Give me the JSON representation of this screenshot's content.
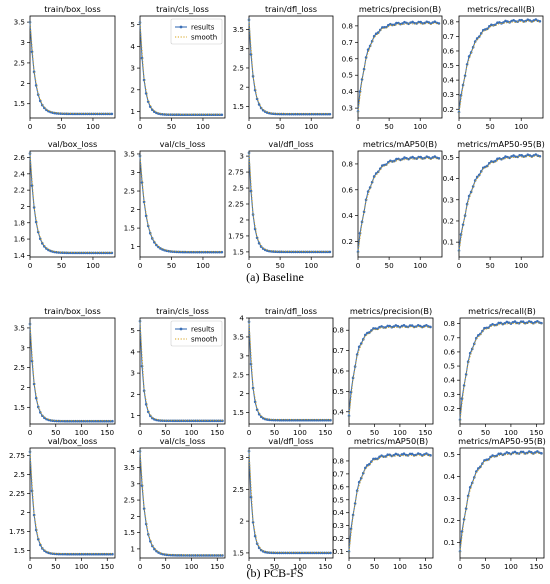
{
  "captions": [
    "(a) Baseline",
    "(b) PCB-FS"
  ],
  "style": {
    "line_color": "#3b6fb6",
    "smooth_color": "#d4a017",
    "axis_color": "#000000"
  },
  "legend": {
    "results": "results",
    "smooth": "smooth"
  },
  "chart_data": [
    {
      "type": "line",
      "group": 0,
      "title": "train/box_loss",
      "xlim": [
        0,
        135
      ],
      "ylim": [
        1.15,
        3.65
      ],
      "xticks": [
        0,
        50,
        100
      ],
      "yticks": [
        1.5,
        2.0,
        2.5,
        3.0,
        3.5
      ],
      "x_end": 130,
      "y_start": 3.5,
      "y_end": 1.25,
      "decay": 0.12,
      "mid": 1.55,
      "mid_x": 18,
      "legend": false
    },
    {
      "type": "line",
      "group": 0,
      "title": "train/cls_loss",
      "xlim": [
        0,
        135
      ],
      "ylim": [
        0.7,
        5.4
      ],
      "xticks": [
        0,
        50,
        100
      ],
      "yticks": [
        1,
        2,
        3,
        4,
        5
      ],
      "x_end": 130,
      "y_start": 5.1,
      "y_end": 0.85,
      "decay": 0.15,
      "mid": 1.5,
      "mid_x": 15,
      "legend": true
    },
    {
      "type": "line",
      "group": 0,
      "title": "train/dfl_loss",
      "xlim": [
        0,
        135
      ],
      "ylim": [
        1.2,
        3.85
      ],
      "xticks": [
        0,
        50,
        100
      ],
      "yticks": [
        1.5,
        2.0,
        2.5,
        3.0,
        3.5
      ],
      "x_end": 130,
      "y_start": 3.75,
      "y_end": 1.3,
      "decay": 0.14,
      "mid": 1.6,
      "mid_x": 18,
      "legend": false
    },
    {
      "type": "line",
      "group": 0,
      "title": "metrics/precision(B)",
      "xlim": [
        0,
        135
      ],
      "ylim": [
        0.24,
        0.86
      ],
      "xticks": [
        0,
        50,
        100
      ],
      "yticks": [
        0.3,
        0.4,
        0.5,
        0.6,
        0.7,
        0.8
      ],
      "x_end": 130,
      "y_start": 0.28,
      "y_end": 0.82,
      "decay": 0.07,
      "legend": false
    },
    {
      "type": "line",
      "group": 0,
      "title": "metrics/recall(B)",
      "xlim": [
        0,
        135
      ],
      "ylim": [
        0.14,
        0.84
      ],
      "xticks": [
        0,
        50,
        100
      ],
      "yticks": [
        0.2,
        0.3,
        0.4,
        0.5,
        0.6,
        0.7,
        0.8
      ],
      "x_end": 130,
      "y_start": 0.18,
      "y_end": 0.81,
      "decay": 0.055,
      "legend": false
    },
    {
      "type": "line",
      "group": 0,
      "title": "val/box_loss",
      "xlim": [
        0,
        135
      ],
      "ylim": [
        1.38,
        2.68
      ],
      "xticks": [
        0,
        50,
        100
      ],
      "yticks": [
        1.4,
        1.6,
        1.8,
        2.0,
        2.2,
        2.4,
        2.6
      ],
      "x_end": 130,
      "y_start": 2.65,
      "y_end": 1.43,
      "decay": 0.12,
      "mid": 1.6,
      "mid_x": 10,
      "legend": false
    },
    {
      "type": "line",
      "group": 0,
      "title": "val/cls_loss",
      "xlim": [
        0,
        135
      ],
      "ylim": [
        0.72,
        3.58
      ],
      "xticks": [
        0,
        50,
        100
      ],
      "yticks": [
        1.0,
        1.5,
        2.0,
        2.5,
        3.0,
        3.5
      ],
      "x_end": 130,
      "y_start": 3.45,
      "y_end": 0.85,
      "decay": 0.1,
      "mid": 1.3,
      "mid_x": 15,
      "legend": false
    },
    {
      "type": "line",
      "group": 0,
      "title": "val/dfl_loss",
      "xlim": [
        0,
        135
      ],
      "ylim": [
        1.42,
        3.08
      ],
      "xticks": [
        0,
        50,
        100
      ],
      "yticks": [
        1.5,
        1.75,
        2.0,
        2.25,
        2.5,
        2.75,
        3.0
      ],
      "x_end": 130,
      "y_start": 3.05,
      "y_end": 1.5,
      "decay": 0.15,
      "mid": 1.7,
      "mid_x": 12,
      "legend": false
    },
    {
      "type": "line",
      "group": 0,
      "title": "metrics/mAP50(B)",
      "xlim": [
        0,
        135
      ],
      "ylim": [
        0.08,
        0.9
      ],
      "xticks": [
        0,
        50,
        100
      ],
      "yticks": [
        0.2,
        0.4,
        0.6,
        0.8
      ],
      "x_end": 130,
      "y_start": 0.12,
      "y_end": 0.85,
      "decay": 0.06,
      "legend": false
    },
    {
      "type": "line",
      "group": 0,
      "title": "metrics/mAP50-95(B)",
      "xlim": [
        0,
        135
      ],
      "ylim": [
        0.03,
        0.53
      ],
      "xticks": [
        0,
        50,
        100
      ],
      "yticks": [
        0.1,
        0.2,
        0.3,
        0.4,
        0.5
      ],
      "x_end": 130,
      "y_start": 0.06,
      "y_end": 0.51,
      "decay": 0.05,
      "legend": false
    },
    {
      "type": "line",
      "group": 1,
      "title": "train/box_loss",
      "xlim": [
        0,
        165
      ],
      "ylim": [
        1.08,
        3.75
      ],
      "xticks": [
        0,
        50,
        100,
        150
      ],
      "yticks": [
        1.5,
        2.0,
        2.5,
        3.0,
        3.5
      ],
      "x_end": 160,
      "y_start": 3.6,
      "y_end": 1.15,
      "decay": 0.12,
      "mid": 1.55,
      "mid_x": 18,
      "legend": false
    },
    {
      "type": "line",
      "group": 1,
      "title": "train/cls_loss",
      "xlim": [
        0,
        165
      ],
      "ylim": [
        0.6,
        5.6
      ],
      "xticks": [
        0,
        50,
        100,
        150
      ],
      "yticks": [
        1,
        2,
        3,
        4,
        5
      ],
      "x_end": 160,
      "y_start": 5.45,
      "y_end": 0.75,
      "decay": 0.15,
      "mid": 1.4,
      "mid_x": 15,
      "legend": true
    },
    {
      "type": "line",
      "group": 1,
      "title": "train/dfl_loss",
      "xlim": [
        0,
        165
      ],
      "ylim": [
        1.2,
        4.0
      ],
      "xticks": [
        0,
        50,
        100,
        150
      ],
      "yticks": [
        1.5,
        2.0,
        2.5,
        3.0,
        3.5,
        4.0
      ],
      "x_end": 160,
      "y_start": 3.9,
      "y_end": 1.3,
      "decay": 0.14,
      "mid": 1.6,
      "mid_x": 18,
      "legend": false
    },
    {
      "type": "line",
      "group": 1,
      "title": "metrics/precision(B)",
      "xlim": [
        0,
        165
      ],
      "ylim": [
        0.34,
        0.86
      ],
      "xticks": [
        0,
        50,
        100,
        150
      ],
      "yticks": [
        0.4,
        0.5,
        0.6,
        0.7,
        0.8
      ],
      "x_end": 160,
      "y_start": 0.38,
      "y_end": 0.82,
      "decay": 0.07,
      "legend": false
    },
    {
      "type": "line",
      "group": 1,
      "title": "metrics/recall(B)",
      "xlim": [
        0,
        165
      ],
      "ylim": [
        0.09,
        0.84
      ],
      "xticks": [
        0,
        50,
        100,
        150
      ],
      "yticks": [
        0.2,
        0.3,
        0.4,
        0.5,
        0.6,
        0.7,
        0.8
      ],
      "x_end": 160,
      "y_start": 0.12,
      "y_end": 0.81,
      "decay": 0.055,
      "legend": false
    },
    {
      "type": "line",
      "group": 1,
      "title": "val/box_loss",
      "xlim": [
        0,
        165
      ],
      "ylim": [
        1.4,
        2.85
      ],
      "xticks": [
        0,
        50,
        100,
        150
      ],
      "yticks": [
        1.5,
        1.75,
        2.0,
        2.25,
        2.5,
        2.75
      ],
      "x_end": 160,
      "y_start": 2.8,
      "y_end": 1.45,
      "decay": 0.12,
      "mid": 1.6,
      "mid_x": 10,
      "legend": false
    },
    {
      "type": "line",
      "group": 1,
      "title": "val/cls_loss",
      "xlim": [
        0,
        165
      ],
      "ylim": [
        0.72,
        4.1
      ],
      "xticks": [
        0,
        50,
        100,
        150
      ],
      "yticks": [
        1.0,
        1.5,
        2.0,
        2.5,
        3.0,
        3.5,
        4.0
      ],
      "x_end": 160,
      "y_start": 4.0,
      "y_end": 0.8,
      "decay": 0.1,
      "mid": 1.3,
      "mid_x": 15,
      "legend": false
    },
    {
      "type": "line",
      "group": 1,
      "title": "val/dfl_loss",
      "xlim": [
        0,
        165
      ],
      "ylim": [
        1.42,
        3.15
      ],
      "xticks": [
        0,
        50,
        100,
        150
      ],
      "yticks": [
        1.5,
        2.0,
        2.5,
        3.0
      ],
      "x_end": 160,
      "y_start": 3.1,
      "y_end": 1.5,
      "decay": 0.15,
      "mid": 1.7,
      "mid_x": 12,
      "legend": false
    },
    {
      "type": "line",
      "group": 1,
      "title": "metrics/mAP50(B)",
      "xlim": [
        0,
        165
      ],
      "ylim": [
        0.05,
        0.9
      ],
      "xticks": [
        0,
        50,
        100,
        150
      ],
      "yticks": [
        0.1,
        0.2,
        0.3,
        0.4,
        0.5,
        0.6,
        0.7,
        0.8
      ],
      "x_end": 160,
      "y_start": 0.1,
      "y_end": 0.85,
      "decay": 0.06,
      "legend": false
    },
    {
      "type": "line",
      "group": 1,
      "title": "metrics/mAP50-95(B)",
      "xlim": [
        0,
        165
      ],
      "ylim": [
        0.03,
        0.53
      ],
      "xticks": [
        0,
        50,
        100,
        150
      ],
      "yticks": [
        0.1,
        0.2,
        0.3,
        0.4,
        0.5
      ],
      "x_end": 160,
      "y_start": 0.06,
      "y_end": 0.51,
      "decay": 0.05,
      "legend": false
    }
  ]
}
